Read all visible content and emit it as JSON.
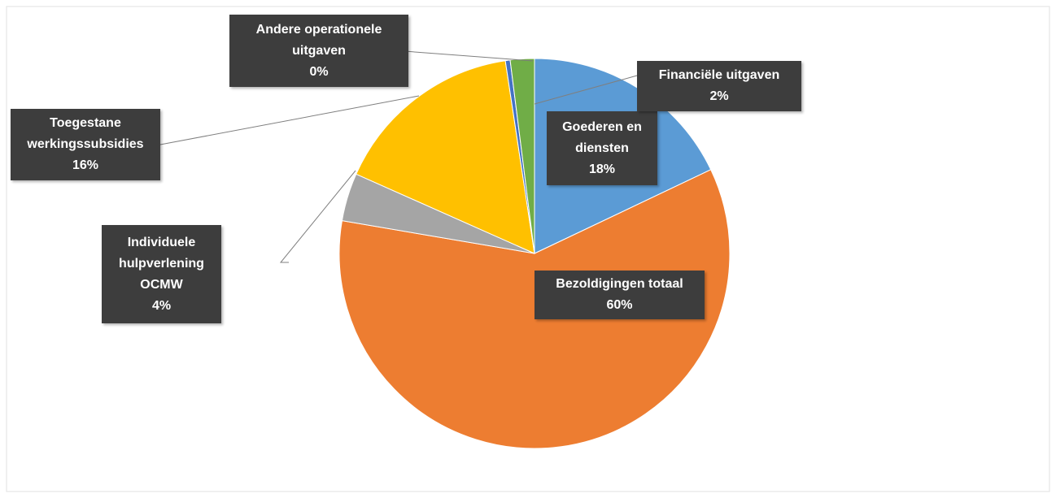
{
  "chart_data": {
    "type": "pie",
    "categories": [
      "Goederen en diensten",
      "Bezoldigingen totaal",
      "Individuele hulpverlening OCMW",
      "Toegestane werkingssubsidies",
      "Andere operationele uitgaven",
      "Financiële uitgaven"
    ],
    "values": [
      18,
      60,
      4,
      16,
      0.4,
      2
    ],
    "value_labels": [
      "18%",
      "60%",
      "4%",
      "16%",
      "0%",
      "2%"
    ],
    "colors": [
      "#5b9bd5",
      "#ed7d31",
      "#a5a5a5",
      "#ffc000",
      "#4472c4",
      "#70ad47"
    ]
  }
}
